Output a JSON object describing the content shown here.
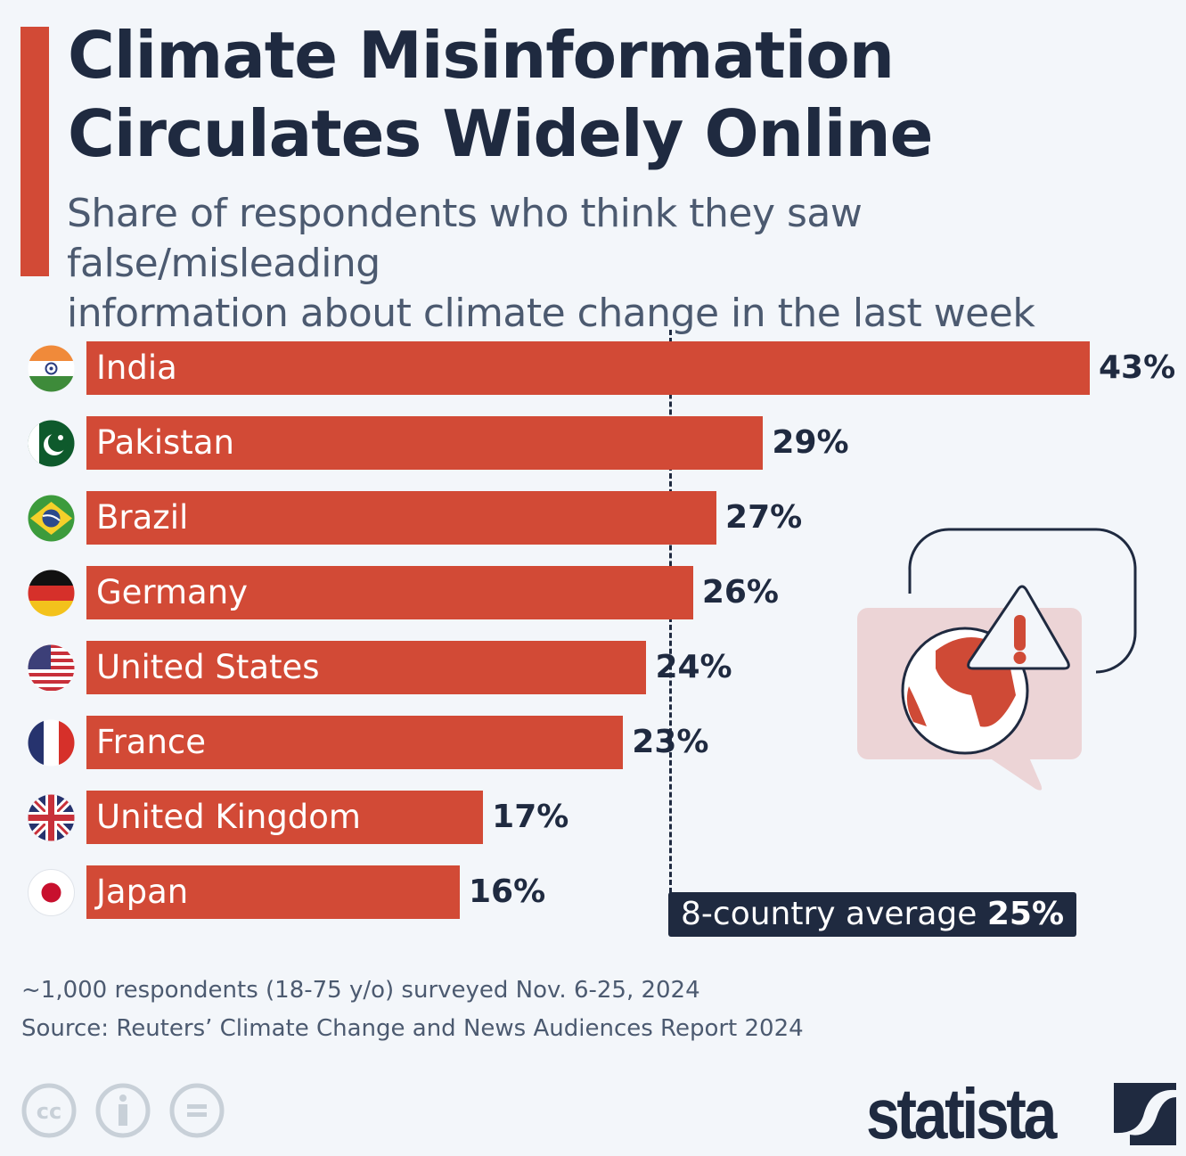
{
  "header": {
    "title_line1": "Climate Misinformation",
    "title_line2": "Circulates Widely Online",
    "subtitle_line1": "Share of respondents who think they saw false/misleading",
    "subtitle_line2": "information about climate change in the last week"
  },
  "colors": {
    "bar": "#d24a36",
    "text": "#1f2a40",
    "background": "#f3f6fa"
  },
  "chart_data": {
    "type": "bar",
    "orientation": "horizontal",
    "title": "Climate Misinformation Circulates Widely Online",
    "categories": [
      "India",
      "Pakistan",
      "Brazil",
      "Germany",
      "United States",
      "France",
      "United Kingdom",
      "Japan"
    ],
    "values": [
      43,
      29,
      27,
      26,
      24,
      23,
      17,
      16
    ],
    "value_labels": [
      "43%",
      "29%",
      "27%",
      "26%",
      "24%",
      "23%",
      "17%",
      "16%"
    ],
    "flags": [
      "india-flag-icon",
      "pakistan-flag-icon",
      "brazil-flag-icon",
      "germany-flag-icon",
      "usa-flag-icon",
      "france-flag-icon",
      "uk-flag-icon",
      "japan-flag-icon"
    ],
    "unit": "%",
    "xlim": [
      0,
      43
    ],
    "reference_line": {
      "value": 25,
      "label": "8-country average",
      "value_label": "25%"
    }
  },
  "footer": {
    "note": "~1,000 respondents (18-75 y/o) surveyed Nov. 6-25, 2024",
    "source": "Source: Reuters’ Climate Change and News Audiences Report 2024",
    "brand": "statista"
  }
}
